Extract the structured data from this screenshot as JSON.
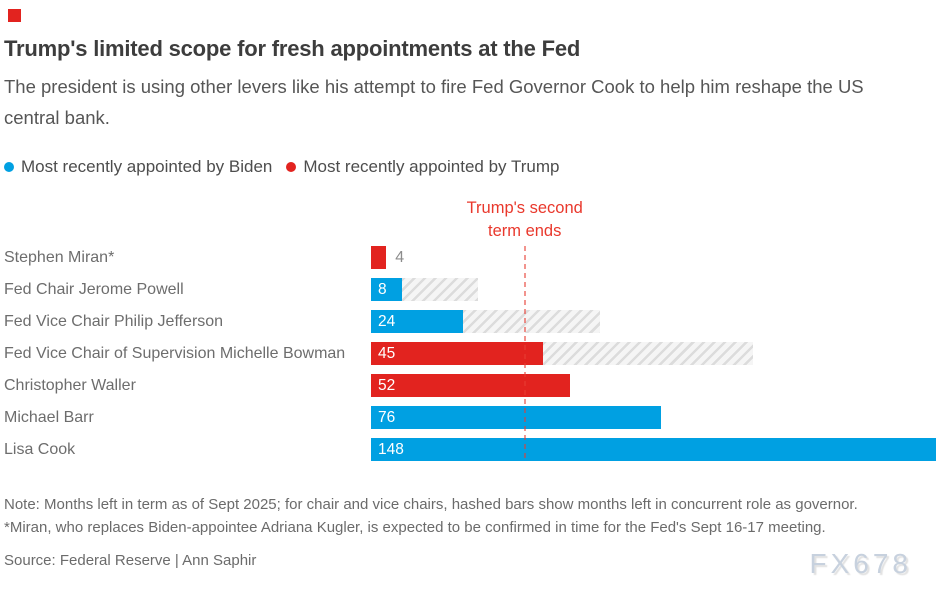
{
  "marker_color": "#e2231f",
  "header": {
    "title": "Trump's limited scope for fresh appointments at the Fed",
    "subtitle": "The president is using other levers like his attempt to fire Fed Governor Cook to help him reshape the US central bank."
  },
  "legend": {
    "items": [
      {
        "label": "Most recently appointed by Biden",
        "color": "#00a0e2"
      },
      {
        "label": "Most recently appointed by Trump",
        "color": "#e2231f"
      }
    ]
  },
  "chart_data": {
    "type": "bar",
    "orientation": "horizontal",
    "title": "Months left in term as of Sept 2025",
    "xlim": [
      0,
      148
    ],
    "grid": false,
    "annotation": {
      "lines": [
        "Trump's second",
        "term ends"
      ],
      "x_months": 40,
      "text_color": "#e9382c",
      "line_color": "rgba(231,60,50,0.55)"
    },
    "bars": [
      {
        "label": "Stephen Miran*",
        "value": 4,
        "appointed_by": "Trump",
        "color": "#e2231f",
        "hash_total": null,
        "value_label_inside": false
      },
      {
        "label": "Fed Chair Jerome Powell",
        "value": 8,
        "appointed_by": "Biden",
        "color": "#00a0e2",
        "hash_total": 28,
        "value_label_inside": true
      },
      {
        "label": "Fed Vice Chair Philip Jefferson",
        "value": 24,
        "appointed_by": "Biden",
        "color": "#00a0e2",
        "hash_total": 60,
        "value_label_inside": true
      },
      {
        "label": "Fed Vice Chair of Supervision Michelle Bowman",
        "value": 45,
        "appointed_by": "Trump",
        "color": "#e2231f",
        "hash_total": 100,
        "value_label_inside": true
      },
      {
        "label": "Christopher Waller",
        "value": 52,
        "appointed_by": "Trump",
        "color": "#e2231f",
        "hash_total": null,
        "value_label_inside": true
      },
      {
        "label": "Michael Barr",
        "value": 76,
        "appointed_by": "Biden",
        "color": "#00a0e2",
        "hash_total": null,
        "value_label_inside": true
      },
      {
        "label": "Lisa Cook",
        "value": 148,
        "appointed_by": "Biden",
        "color": "#00a0e2",
        "hash_total": null,
        "value_label_inside": true
      }
    ]
  },
  "notes": {
    "line1": "Note: Months left in term as of Sept 2025; for chair and vice chairs, hashed bars show months left in concurrent role as governor.",
    "line2": "*Miran, who replaces Biden-appointee Adriana Kugler, is expected to be confirmed in time for the Fed's Sept 16-17 meeting."
  },
  "source": "Source: Federal Reserve | Ann Saphir",
  "watermark": "FX678",
  "colors": {
    "biden_blue": "#00a0e2",
    "trump_red": "#e2231f",
    "hash_stripe": "#dcdcdc",
    "hash_bg": "#f5f5f5"
  }
}
